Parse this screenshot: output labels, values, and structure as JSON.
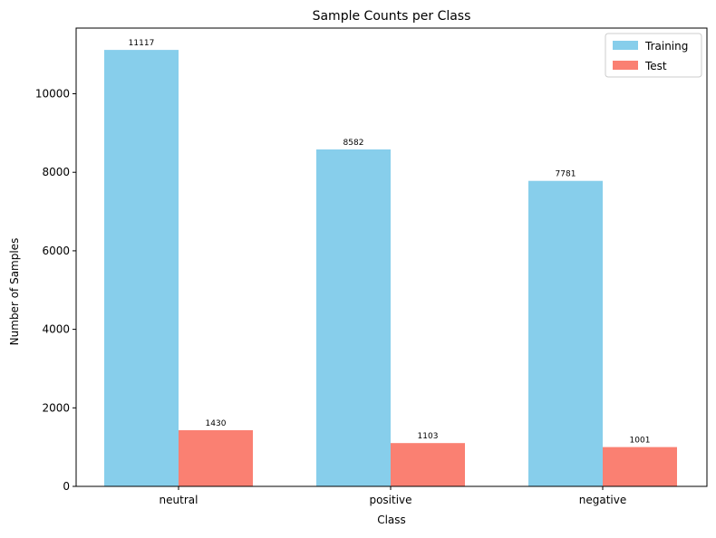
{
  "chart_data": {
    "type": "bar",
    "title": "Sample Counts per Class",
    "xlabel": "Class",
    "ylabel": "Number of Samples",
    "categories": [
      "neutral",
      "positive",
      "negative"
    ],
    "series": [
      {
        "name": "Training",
        "values": [
          11117,
          8582,
          7781
        ],
        "color": "#87ceeb"
      },
      {
        "name": "Test",
        "values": [
          1430,
          1103,
          1001
        ],
        "color": "#fa8072"
      }
    ],
    "ylim": [
      0,
      11673
    ],
    "yticks": [
      0,
      2000,
      4000,
      6000,
      8000,
      10000
    ],
    "grid": false,
    "legend_position": "top-right",
    "data_labels": true
  }
}
